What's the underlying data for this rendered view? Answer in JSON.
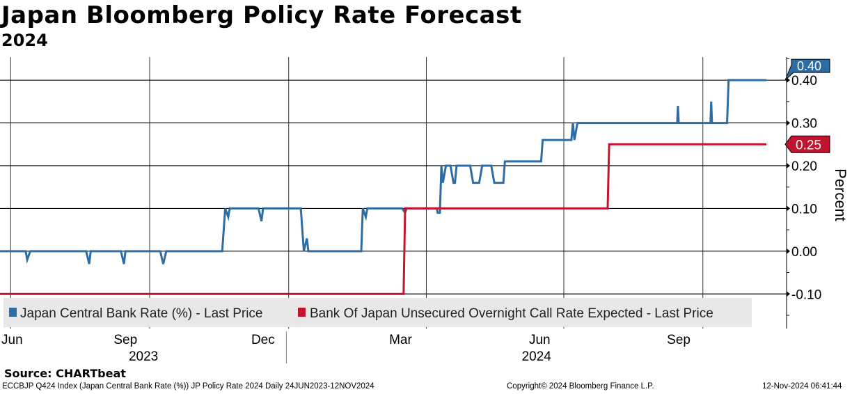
{
  "chart_data": {
    "type": "line",
    "title": "Japan Bloomberg Policy Rate Forecast",
    "subtitle": "2024",
    "ylabel": "Percent",
    "x_unit": "days since 2023-06-24",
    "xlim": [
      0,
      507
    ],
    "ylim": [
      -0.181,
      0.454
    ],
    "yticks": [
      -0.1,
      0.0,
      0.1,
      0.2,
      0.3,
      0.4
    ],
    "ytick_labels": [
      "-0.10",
      "0.00",
      "0.10",
      "0.20",
      "0.30",
      "0.40"
    ],
    "x_gridlines": [
      7,
      99,
      191,
      282,
      373,
      465
    ],
    "xticks": [
      {
        "day": 8,
        "label": "Jun"
      },
      {
        "day": 83,
        "label": "Sep"
      },
      {
        "day": 174,
        "label": "Dec"
      },
      {
        "day": 265,
        "label": "Mar"
      },
      {
        "day": 357,
        "label": "Jun"
      },
      {
        "day": 449,
        "label": "Sep"
      }
    ],
    "years": [
      {
        "day": 94,
        "label": "2023"
      },
      {
        "day": 354,
        "label": "2024"
      }
    ],
    "year_divider_day": 189,
    "grid": true,
    "legend_position": "bottom-left inside",
    "series": [
      {
        "name": "Japan Central Bank Rate (%) - Last Price",
        "color": "#2e6da4",
        "last_value_label": "0.40",
        "points": [
          [
            0,
            0
          ],
          [
            17,
            0
          ],
          [
            18,
            -0.02
          ],
          [
            20,
            0
          ],
          [
            57,
            0
          ],
          [
            59,
            -0.03
          ],
          [
            60,
            0
          ],
          [
            80,
            0
          ],
          [
            82,
            -0.03
          ],
          [
            83,
            0
          ],
          [
            106,
            0
          ],
          [
            108,
            -0.03
          ],
          [
            110,
            0
          ],
          [
            147,
            0
          ],
          [
            149,
            0.1
          ],
          [
            151,
            0.08
          ],
          [
            152,
            0.1
          ],
          [
            171,
            0.1
          ],
          [
            173,
            0.07
          ],
          [
            174,
            0.1
          ],
          [
            199,
            0.1
          ],
          [
            201,
            0
          ],
          [
            203,
            0.03
          ],
          [
            204,
            0
          ],
          [
            239,
            0
          ],
          [
            240,
            0.1
          ],
          [
            242,
            0.08
          ],
          [
            243,
            0.1
          ],
          [
            266,
            0.1
          ],
          [
            268,
            0.09
          ],
          [
            269,
            0.1
          ],
          [
            289,
            0.1
          ],
          [
            289.5,
            0.09
          ],
          [
            291,
            0.09
          ],
          [
            292,
            0.2
          ],
          [
            293,
            0.16
          ],
          [
            295,
            0.2
          ],
          [
            298,
            0.2
          ],
          [
            300,
            0.16
          ],
          [
            301,
            0.16
          ],
          [
            302,
            0.2
          ],
          [
            311,
            0.2
          ],
          [
            313,
            0.16
          ],
          [
            317,
            0.16
          ],
          [
            319,
            0.2
          ],
          [
            325,
            0.2
          ],
          [
            327,
            0.16
          ],
          [
            333,
            0.16
          ],
          [
            334,
            0.21
          ],
          [
            358,
            0.21
          ],
          [
            359,
            0.26
          ],
          [
            378,
            0.26
          ],
          [
            379,
            0.3
          ],
          [
            380,
            0.26
          ],
          [
            382,
            0.3
          ],
          [
            448,
            0.3
          ],
          [
            448.5,
            0.34
          ],
          [
            449,
            0.3
          ],
          [
            470,
            0.3
          ],
          [
            470.5,
            0.35
          ],
          [
            471,
            0.3
          ],
          [
            481,
            0.3
          ],
          [
            482,
            0.4
          ],
          [
            507,
            0.4
          ]
        ]
      },
      {
        "name": "Bank Of Japan Unsecured Overnight Call Rate Expected - Last Price",
        "color": "#c0152f",
        "last_value_label": "0.25",
        "points": [
          [
            0,
            -0.1
          ],
          [
            267,
            -0.1
          ],
          [
            268,
            0.1
          ],
          [
            402,
            0.1
          ],
          [
            403,
            0.25
          ],
          [
            507,
            0.25
          ]
        ]
      }
    ]
  },
  "footer": {
    "source": "Source: CHARTbeat",
    "description": "ECCBJP Q424 Index (Japan Central Bank Rate (%)) JP Policy Rate 2024  Daily 24JUN2023-12NOV2024",
    "copyright": "Copyright© 2024 Bloomberg Finance L.P.",
    "timestamp": "12-Nov-2024 06:41:44"
  }
}
